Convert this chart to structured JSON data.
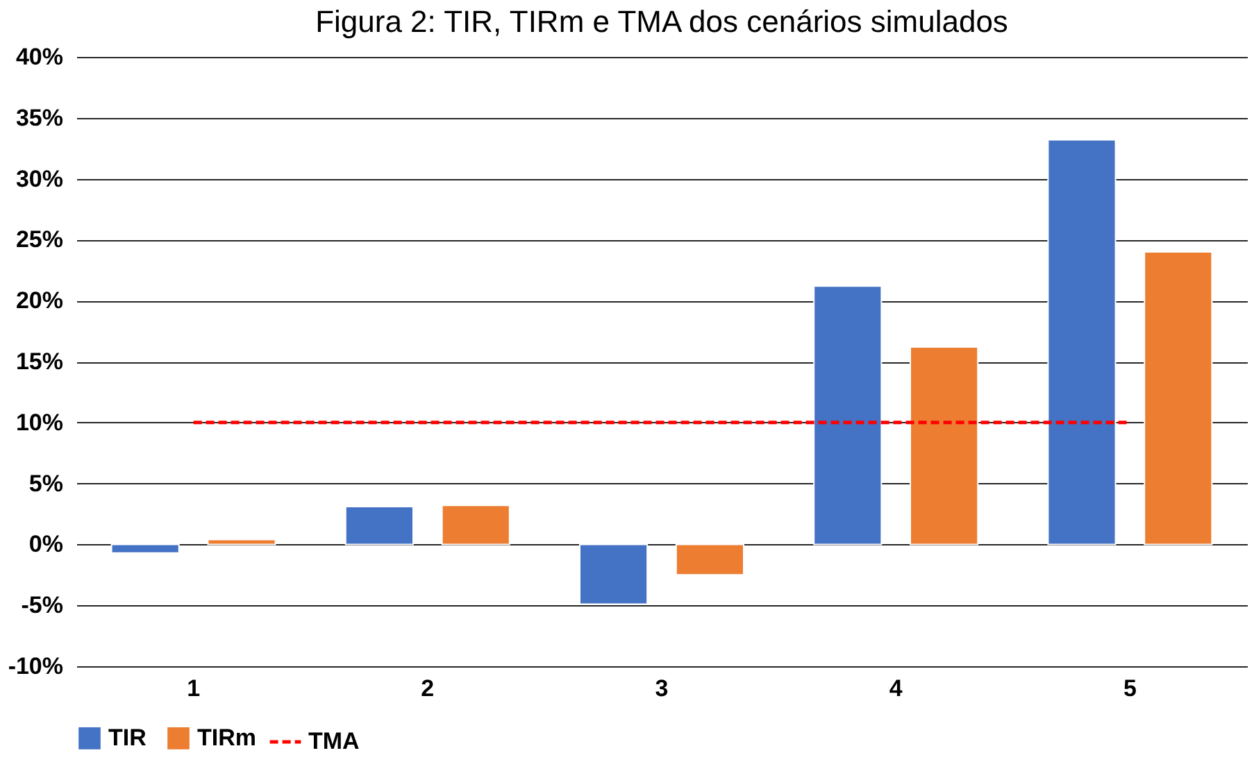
{
  "chart_data": {
    "type": "bar",
    "title": "Figura 2: TIR, TIRm e TMA dos cenários simulados",
    "categories": [
      "1",
      "2",
      "3",
      "4",
      "5"
    ],
    "series": [
      {
        "name": "TIR",
        "color": "#4472c4",
        "values": [
          -0.7,
          3.1,
          -4.9,
          21.2,
          33.2
        ]
      },
      {
        "name": "TIRm",
        "color": "#ed7d31",
        "values": [
          0.4,
          3.2,
          -2.5,
          16.2,
          24.0
        ]
      },
      {
        "name": "TMA",
        "color": "#ff0000",
        "type": "line",
        "line_style": "dashed",
        "values": [
          10,
          10,
          10,
          10,
          10
        ]
      }
    ],
    "ylim": [
      -10,
      40
    ],
    "yticks": [
      {
        "value": -10,
        "label": "-10%"
      },
      {
        "value": -5,
        "label": "-5%"
      },
      {
        "value": 0,
        "label": "0%"
      },
      {
        "value": 5,
        "label": "5%"
      },
      {
        "value": 10,
        "label": "10%"
      },
      {
        "value": 15,
        "label": "15%"
      },
      {
        "value": 20,
        "label": "20%"
      },
      {
        "value": 25,
        "label": "25%"
      },
      {
        "value": 30,
        "label": "30%"
      },
      {
        "value": 35,
        "label": "35%"
      },
      {
        "value": 40,
        "label": "40%"
      }
    ],
    "grid": "y",
    "legend": "bottom"
  }
}
